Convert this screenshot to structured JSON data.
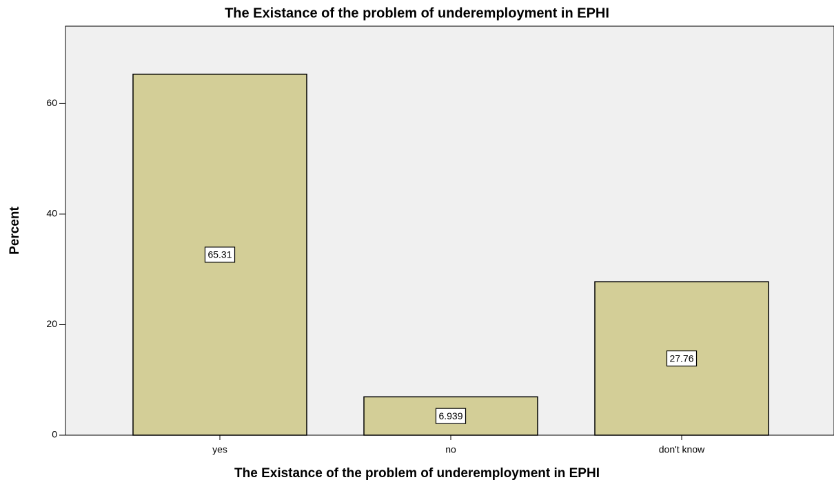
{
  "chart_data": {
    "type": "bar",
    "title": "The Existance of  the problem of underemployment in EPHI",
    "x_label": "The Existance of  the problem of underemployment in EPHI",
    "y_label": "Percent",
    "categories": [
      "yes",
      "no",
      "don't know"
    ],
    "values": [
      65.31,
      6.939,
      27.76
    ],
    "color": "#d3ce97",
    "ylim": [
      0,
      74
    ],
    "yticks": [
      0,
      20,
      40,
      60
    ],
    "grid": false
  }
}
